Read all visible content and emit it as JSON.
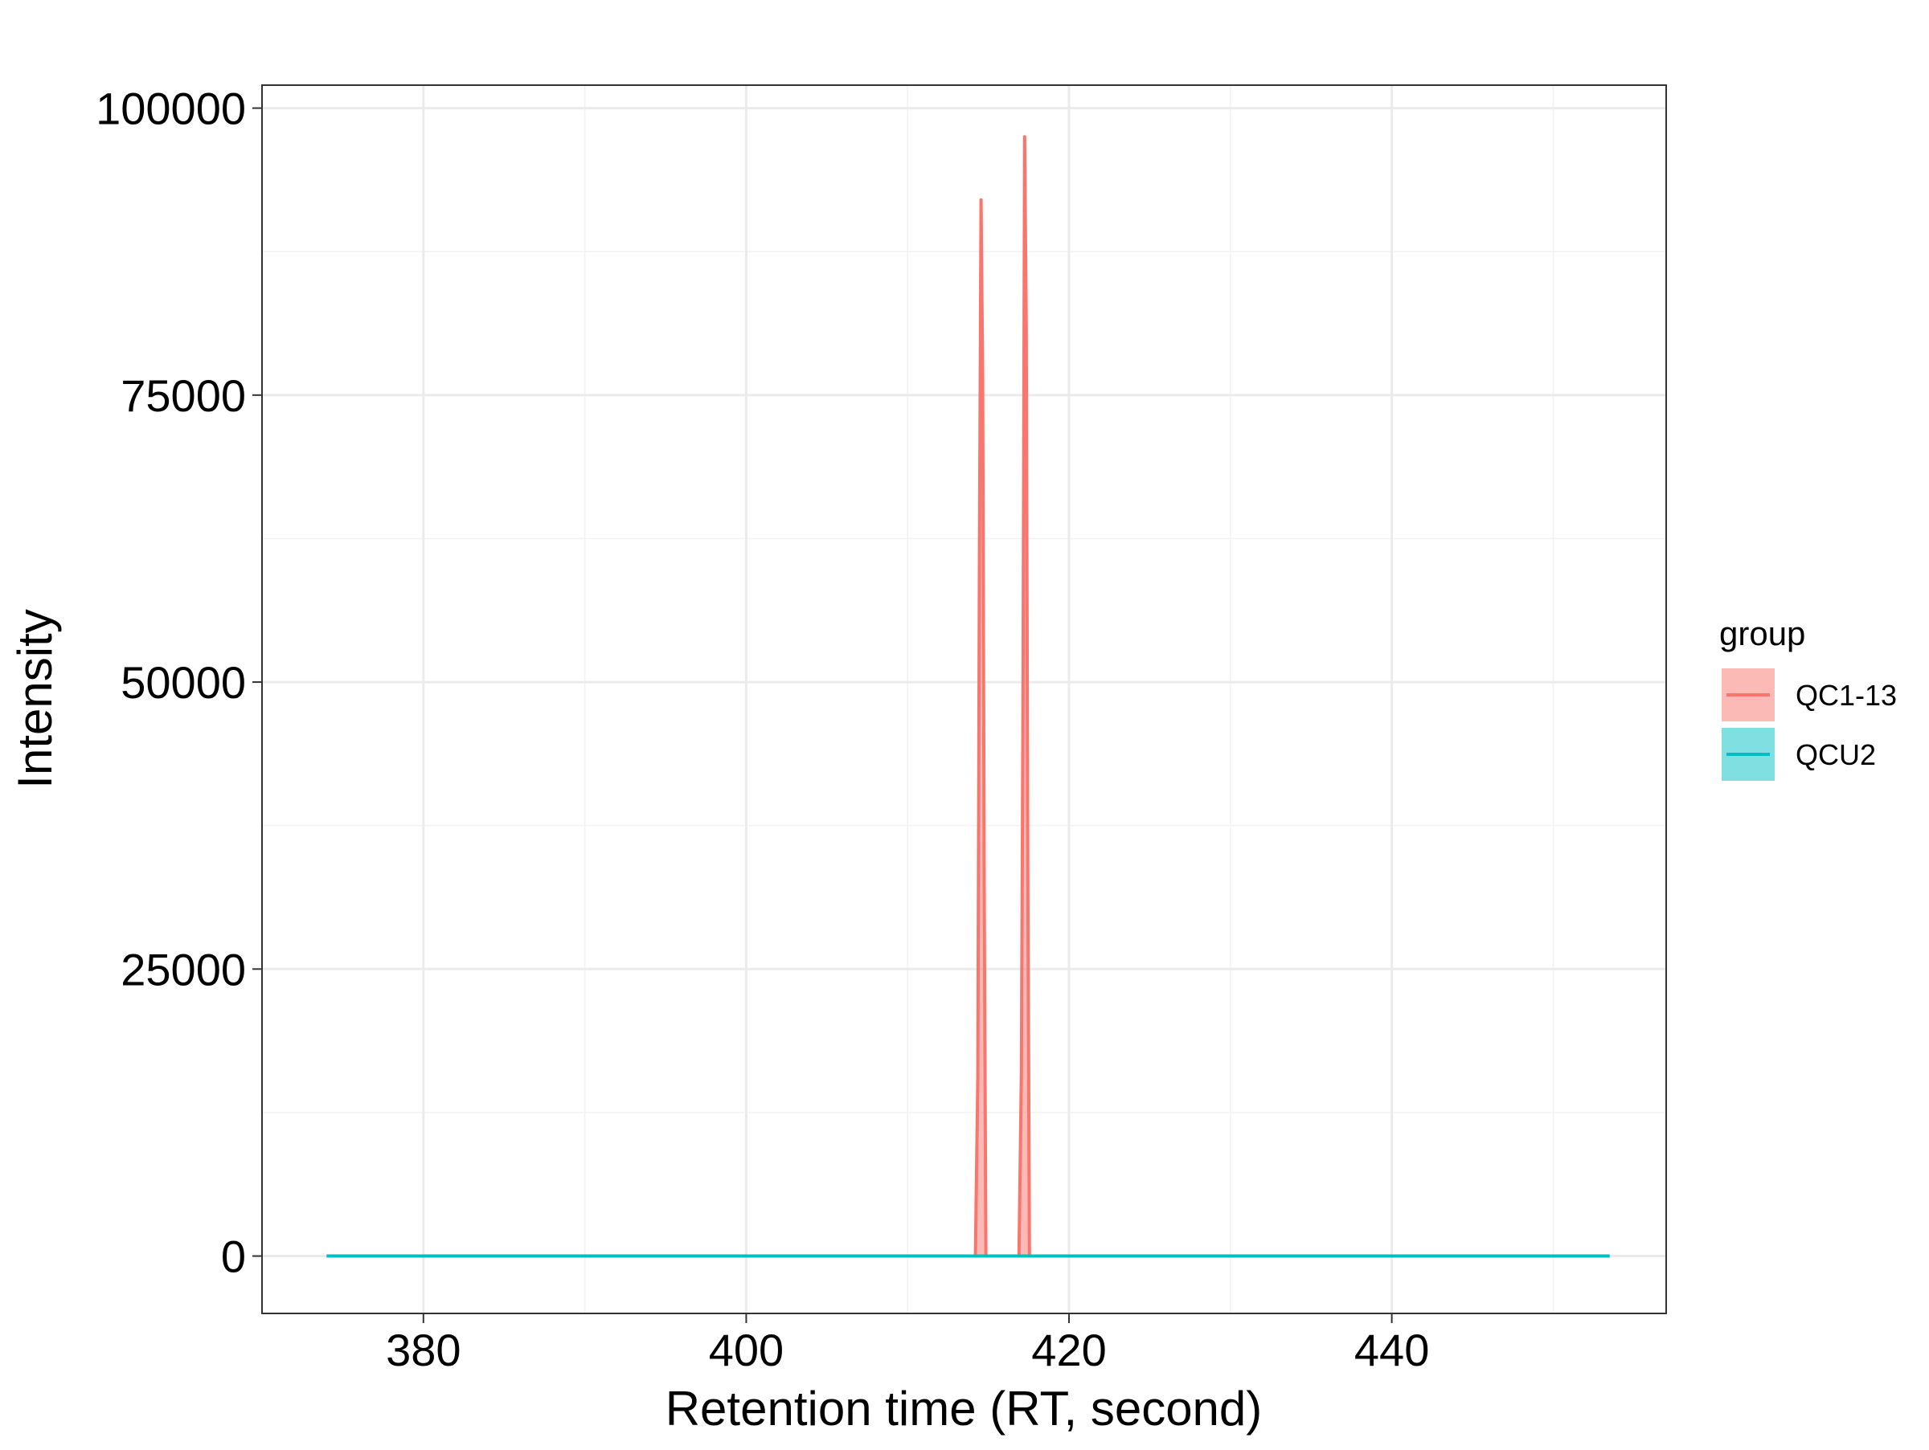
{
  "chart_data": {
    "type": "area",
    "title": "",
    "xlabel": "Retention time (RT, second)",
    "ylabel": "Intensity",
    "xlim": [
      370,
      457
    ],
    "ylim": [
      -5000,
      102000
    ],
    "x_ticks": [
      380,
      400,
      420,
      440
    ],
    "x_tick_labels": [
      "380",
      "400",
      "420",
      "440"
    ],
    "y_ticks": [
      0,
      25000,
      50000,
      75000,
      100000
    ],
    "y_tick_labels": [
      "0",
      "25000",
      "50000",
      "75000",
      "100000"
    ],
    "x_minor_ticks": [
      390,
      410,
      430,
      450
    ],
    "y_minor_ticks": [
      12500,
      37500,
      62500,
      87500
    ],
    "grid": true,
    "legend": {
      "title": "group",
      "placement": "right"
    },
    "series": [
      {
        "name": "QC1-13",
        "color": "#F8766D",
        "fill": "#F8766D",
        "peaks": [
          {
            "x": [
              414.2,
              414.35,
              414.45,
              414.55,
              414.65,
              414.75,
              414.85
            ],
            "y": [
              0,
              15500,
              61000,
              92000,
              76500,
              30500,
              0
            ]
          },
          {
            "x": [
              416.9,
              417.05,
              417.15,
              417.25,
              417.35,
              417.45,
              417.55
            ],
            "y": [
              0,
              16000,
              49000,
              97500,
              81000,
              32500,
              0
            ]
          }
        ]
      },
      {
        "name": "QCU2",
        "color": "#00BFC4",
        "fill": "#00BFC4",
        "x": [
          374,
          453.5
        ],
        "y": [
          0,
          0
        ]
      }
    ]
  }
}
